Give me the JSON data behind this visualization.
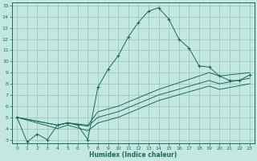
{
  "bg_color": "#c4e8e0",
  "grid_color": "#90c4bc",
  "line_color": "#1a6b5a",
  "xlabel": "Humidex (Indice chaleur)",
  "xlim": [
    -0.5,
    23.5
  ],
  "ylim": [
    2.7,
    15.3
  ],
  "xticks": [
    0,
    1,
    2,
    3,
    4,
    5,
    6,
    7,
    8,
    9,
    10,
    11,
    12,
    13,
    14,
    15,
    16,
    17,
    18,
    19,
    20,
    21,
    22,
    23
  ],
  "yticks": [
    3,
    4,
    5,
    6,
    7,
    8,
    9,
    10,
    11,
    12,
    13,
    14,
    15
  ],
  "series_main": {
    "x": [
      0,
      1,
      2,
      3,
      4,
      5,
      6,
      7,
      8,
      9,
      10,
      11,
      12,
      13,
      14,
      15,
      16,
      17,
      18,
      19,
      20,
      21,
      22,
      23
    ],
    "y": [
      5.0,
      2.8,
      3.5,
      3.0,
      4.3,
      4.5,
      4.3,
      3.0,
      7.7,
      9.3,
      10.5,
      12.2,
      13.5,
      14.5,
      14.8,
      13.8,
      12.0,
      11.2,
      9.6,
      9.5,
      8.7,
      8.3,
      8.3,
      8.8
    ]
  },
  "series_smooth": [
    {
      "x": [
        0,
        4,
        5,
        7,
        8,
        10,
        14,
        19,
        20,
        23
      ],
      "y": [
        5.0,
        4.3,
        4.5,
        4.3,
        5.5,
        6.0,
        7.5,
        9.0,
        8.7,
        9.0
      ]
    },
    {
      "x": [
        0,
        4,
        5,
        7,
        8,
        10,
        14,
        19,
        20,
        23
      ],
      "y": [
        5.0,
        4.3,
        4.5,
        4.2,
        5.0,
        5.5,
        7.0,
        8.3,
        8.0,
        8.5
      ]
    },
    {
      "x": [
        0,
        4,
        5,
        7,
        8,
        10,
        14,
        19,
        20,
        23
      ],
      "y": [
        5.0,
        4.0,
        4.3,
        3.8,
        4.5,
        5.0,
        6.5,
        7.8,
        7.5,
        8.0
      ]
    }
  ]
}
